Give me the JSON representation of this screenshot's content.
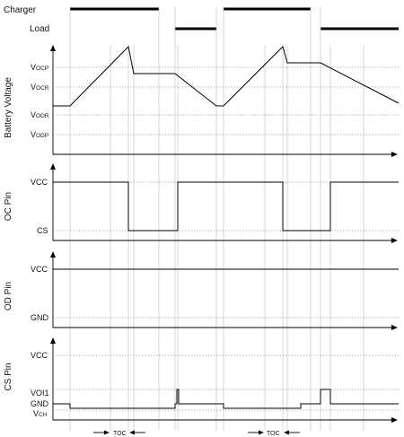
{
  "header": {
    "charger_label": "Charger",
    "load_label": "Load"
  },
  "battery_panel": {
    "y_label": "Battery Voltage",
    "levels": [
      {
        "main": "V",
        "sub": "OCP"
      },
      {
        "main": "V",
        "sub": "OCR"
      },
      {
        "main": "V",
        "sub": "ODR"
      },
      {
        "main": "V",
        "sub": "ODP"
      }
    ]
  },
  "oc_panel": {
    "y_label": "OC Pin",
    "levels": [
      "VCC",
      "CS"
    ]
  },
  "od_panel": {
    "y_label": "OD Pin",
    "levels": [
      "VCC",
      "GND"
    ]
  },
  "cs_panel": {
    "y_label": "CS Pin",
    "levels": [
      {
        "main": "VCC",
        "sub": ""
      },
      {
        "main": "VOI1",
        "sub": ""
      },
      {
        "main": "GND",
        "sub": ""
      },
      {
        "main": "V",
        "sub": "CH"
      }
    ]
  },
  "toc_labels": [
    "TOC",
    "TOC"
  ]
}
